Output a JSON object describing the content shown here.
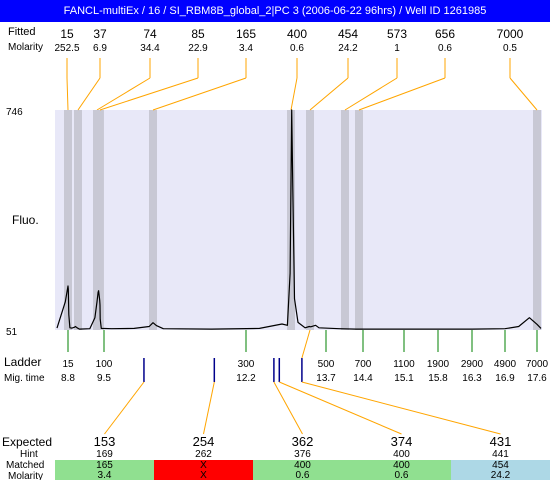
{
  "title": "FANCL-multiEx / 16 / SI_RBM8B_global_2|PC 3 (2006-06-22 96hrs) / Well ID 1261985",
  "colors": {
    "title_bar": "#0000ff",
    "plot_bg": "#e8e8f8",
    "peak_band": "#c8c8d4",
    "connector": "#ffa500",
    "ladder_tick": "#008000",
    "match_mark": "#00008b",
    "matched_ok": "#90e090",
    "matched_fail": "#ff0000",
    "matched_alt": "#add8e6",
    "expected_red": "#ff0000"
  },
  "header": {
    "row1_label": "Fitted",
    "row2_label": "Molarity",
    "sizes": [
      "15",
      "37",
      "74",
      "85",
      "165",
      "400",
      "454",
      "573",
      "656",
      "7000"
    ],
    "molarities": [
      "252.5",
      "6.9",
      "34.4",
      "22.9",
      "3.4",
      "0.6",
      "24.2",
      "1",
      "0.6",
      "0.5"
    ]
  },
  "y_axis": {
    "label": "Fluo.",
    "max_label": "746",
    "min_label": "51"
  },
  "ladder": {
    "label": "Ladder",
    "time_label": "Mig. time",
    "sizes": [
      "15",
      "100",
      "300",
      "500",
      "700",
      "1100",
      "1900",
      "2900",
      "4900",
      "7000"
    ],
    "times": [
      "8.8",
      "9.5",
      "12.2",
      "13.7",
      "14.4",
      "15.1",
      "15.8",
      "16.3",
      "16.9",
      "17.6"
    ]
  },
  "table": {
    "labels": {
      "expected": "Expected",
      "hint": "Hint",
      "matched": "Matched",
      "molarity": "Molarity"
    },
    "columns": [
      {
        "expected": "153",
        "expected_color": "#ff0000",
        "hint": "169",
        "matched": "165",
        "molarity": "3.4",
        "cell_color": "#90e090"
      },
      {
        "expected": "254",
        "expected_color": "#000000",
        "hint": "262",
        "matched": "X",
        "molarity": "X",
        "cell_color": "#ff0000"
      },
      {
        "expected": "362",
        "expected_color": "#000000",
        "hint": "376",
        "matched": "400",
        "molarity": "0.6",
        "cell_color": "#90e090"
      },
      {
        "expected": "374",
        "expected_color": "#000000",
        "hint": "400",
        "matched": "400",
        "molarity": "0.6",
        "cell_color": "#90e090"
      },
      {
        "expected": "431",
        "expected_color": "#ff0000",
        "hint": "441",
        "matched": "454",
        "molarity": "24.2",
        "cell_color": "#add8e6"
      }
    ]
  },
  "chart_data": {
    "type": "line",
    "title": "FANCL-multiEx / 16 / SI_RBM8B_global_2|PC 3 (2006-06-22 96hrs) / Well ID 1261985",
    "xlabel": "",
    "ylabel": "Fluo.",
    "ylim": [
      51,
      746
    ],
    "grid": false,
    "x_unit": "bp (ladder-calibrated)",
    "series": [
      {
        "x": [
          11,
          14,
          15,
          16,
          18,
          22,
          30,
          33,
          34,
          36,
          40,
          60,
          70,
          74,
          78,
          80,
          84,
          85,
          86,
          90,
          110,
          140,
          160,
          165,
          170,
          180,
          250,
          330,
          380,
          392,
          398,
          402,
          405,
          410,
          420,
          440,
          452,
          456,
          470,
          480,
          550,
          640,
          740,
          850,
          1100,
          1900,
          2900,
          4900,
          5800,
          6500,
          7000,
          7500
        ],
        "values": [
          57,
          140,
          190,
          180,
          100,
          58,
          57,
          60,
          62,
          58,
          54,
          55,
          90,
          140,
          170,
          175,
          145,
          130,
          85,
          56,
          55,
          56,
          62,
          74,
          65,
          55,
          54,
          56,
          70,
          66,
          230,
          746,
          500,
          150,
          75,
          58,
          62,
          61,
          66,
          58,
          55,
          54,
          54,
          54,
          54,
          54,
          54,
          55,
          62,
          90,
          69,
          56
        ]
      }
    ],
    "fitted_peaks": [
      {
        "size": 15,
        "molarity": 252.5
      },
      {
        "size": 37,
        "molarity": 6.9
      },
      {
        "size": 74,
        "molarity": 34.4
      },
      {
        "size": 85,
        "molarity": 22.9
      },
      {
        "size": 165,
        "molarity": 3.4
      },
      {
        "size": 400,
        "molarity": 0.6
      },
      {
        "size": 454,
        "molarity": 24.2
      },
      {
        "size": 573,
        "molarity": 1
      },
      {
        "size": 656,
        "molarity": 0.6
      },
      {
        "size": 7000,
        "molarity": 0.5
      }
    ],
    "ladder": [
      {
        "size": 15,
        "mig_time": 8.8
      },
      {
        "size": 100,
        "mig_time": 9.5
      },
      {
        "size": 300,
        "mig_time": 12.2
      },
      {
        "size": 500,
        "mig_time": 13.7
      },
      {
        "size": 700,
        "mig_time": 14.4
      },
      {
        "size": 1100,
        "mig_time": 15.1
      },
      {
        "size": 1900,
        "mig_time": 15.8
      },
      {
        "size": 2900,
        "mig_time": 16.3
      },
      {
        "size": 4900,
        "mig_time": 16.9
      },
      {
        "size": 7000,
        "mig_time": 17.6
      }
    ],
    "expected_markers": [
      153,
      254,
      362,
      374,
      431
    ]
  }
}
